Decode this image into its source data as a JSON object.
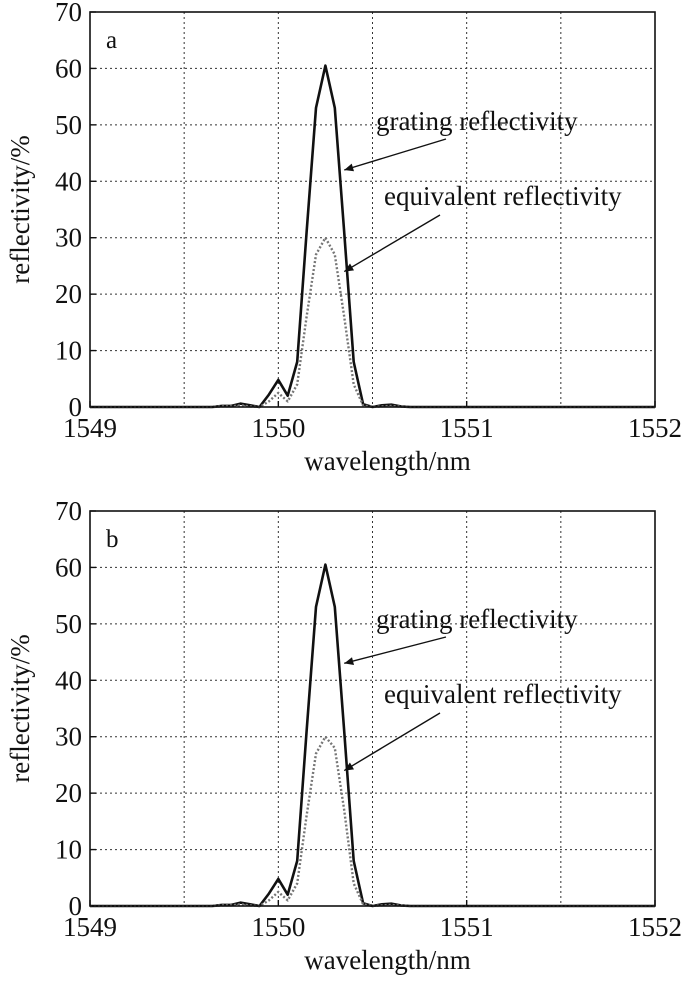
{
  "chart_data": [
    {
      "type": "line",
      "panel_label": "a",
      "xlabel": "wavelength/nm",
      "ylabel": "reflectivity/%",
      "xlim": [
        1549,
        1552
      ],
      "ylim": [
        0,
        70
      ],
      "xticks": [
        "1549",
        "1550",
        "1551",
        "1552"
      ],
      "yticks": [
        "0",
        "10",
        "20",
        "30",
        "40",
        "50",
        "60",
        "70"
      ],
      "grid": true,
      "series": [
        {
          "name": "grating reflectivity",
          "style": "solid",
          "color": "#111111",
          "x": [
            1549.0,
            1549.5,
            1549.65,
            1549.7,
            1549.75,
            1549.8,
            1549.85,
            1549.9,
            1549.95,
            1550.0,
            1550.05,
            1550.1,
            1550.15,
            1550.2,
            1550.25,
            1550.3,
            1550.35,
            1550.4,
            1550.45,
            1550.5,
            1550.55,
            1550.6,
            1550.65,
            1550.7,
            1551.0,
            1552.0
          ],
          "y": [
            0,
            0,
            0,
            0.2,
            0.2,
            0.6,
            0.3,
            0,
            2.2,
            4.8,
            2.0,
            8,
            31,
            53,
            60.5,
            53,
            31,
            8,
            0.5,
            0,
            0.3,
            0.4,
            0.1,
            0,
            0,
            0
          ]
        },
        {
          "name": "equivalent reflectivity",
          "style": "dotted",
          "color": "#777777",
          "x": [
            1549.0,
            1549.5,
            1549.65,
            1549.7,
            1549.75,
            1549.8,
            1549.85,
            1549.9,
            1549.95,
            1550.0,
            1550.05,
            1550.1,
            1550.15,
            1550.2,
            1550.25,
            1550.3,
            1550.35,
            1550.4,
            1550.45,
            1550.5,
            1550.55,
            1550.6,
            1550.65,
            1550.7,
            1551.0,
            1552.0
          ],
          "y": [
            0,
            0,
            0,
            0.1,
            0.1,
            0.3,
            0.1,
            0,
            1.0,
            2.5,
            1.0,
            4,
            16,
            27,
            30,
            27,
            16,
            4,
            0.3,
            0,
            0.1,
            0.2,
            0.05,
            0,
            0,
            0
          ]
        }
      ],
      "annotations": [
        {
          "text": "grating reflectivity",
          "target": [
            1550.35,
            42
          ],
          "series": 0
        },
        {
          "text": "equivalent reflectivity",
          "target": [
            1550.35,
            24
          ],
          "series": 1
        }
      ]
    },
    {
      "type": "line",
      "panel_label": "b",
      "xlabel": "wavelength/nm",
      "ylabel": "reflectivity/%",
      "xlim": [
        1549,
        1552
      ],
      "ylim": [
        0,
        70
      ],
      "xticks": [
        "1549",
        "1550",
        "1551",
        "1552"
      ],
      "yticks": [
        "0",
        "10",
        "20",
        "30",
        "40",
        "50",
        "60",
        "70"
      ],
      "grid": true,
      "series": [
        {
          "name": "grating reflectivity",
          "style": "solid",
          "color": "#111111",
          "x": [
            1549.0,
            1549.5,
            1549.65,
            1549.7,
            1549.75,
            1549.8,
            1549.85,
            1549.9,
            1549.95,
            1550.0,
            1550.05,
            1550.1,
            1550.15,
            1550.2,
            1550.25,
            1550.3,
            1550.35,
            1550.4,
            1550.45,
            1550.5,
            1550.55,
            1550.6,
            1550.65,
            1550.7,
            1551.0,
            1552.0
          ],
          "y": [
            0,
            0,
            0,
            0.2,
            0.2,
            0.6,
            0.3,
            0,
            2.2,
            4.8,
            2.0,
            8,
            31,
            53,
            60.5,
            53,
            31,
            8,
            0.5,
            0,
            0.3,
            0.4,
            0.1,
            0,
            0,
            0
          ]
        },
        {
          "name": "equivalent reflectivity",
          "style": "dotted",
          "color": "#777777",
          "x": [
            1549.0,
            1549.5,
            1549.65,
            1549.7,
            1549.75,
            1549.8,
            1549.85,
            1549.9,
            1549.95,
            1550.0,
            1550.05,
            1550.1,
            1550.15,
            1550.2,
            1550.25,
            1550.3,
            1550.35,
            1550.4,
            1550.45,
            1550.5,
            1550.55,
            1550.6,
            1550.65,
            1550.7,
            1551.0,
            1552.0
          ],
          "y": [
            0,
            0,
            0,
            0.1,
            0.1,
            0.3,
            0.1,
            0,
            1.0,
            2.5,
            1.0,
            4,
            16,
            27,
            30,
            28,
            17,
            4,
            0.3,
            0,
            0.1,
            0.2,
            0.05,
            0,
            0,
            0
          ]
        }
      ],
      "annotations": [
        {
          "text": "grating reflectivity",
          "target": [
            1550.35,
            43
          ],
          "series": 0
        },
        {
          "text": "equivalent reflectivity",
          "target": [
            1550.35,
            24
          ],
          "series": 1
        }
      ]
    }
  ]
}
